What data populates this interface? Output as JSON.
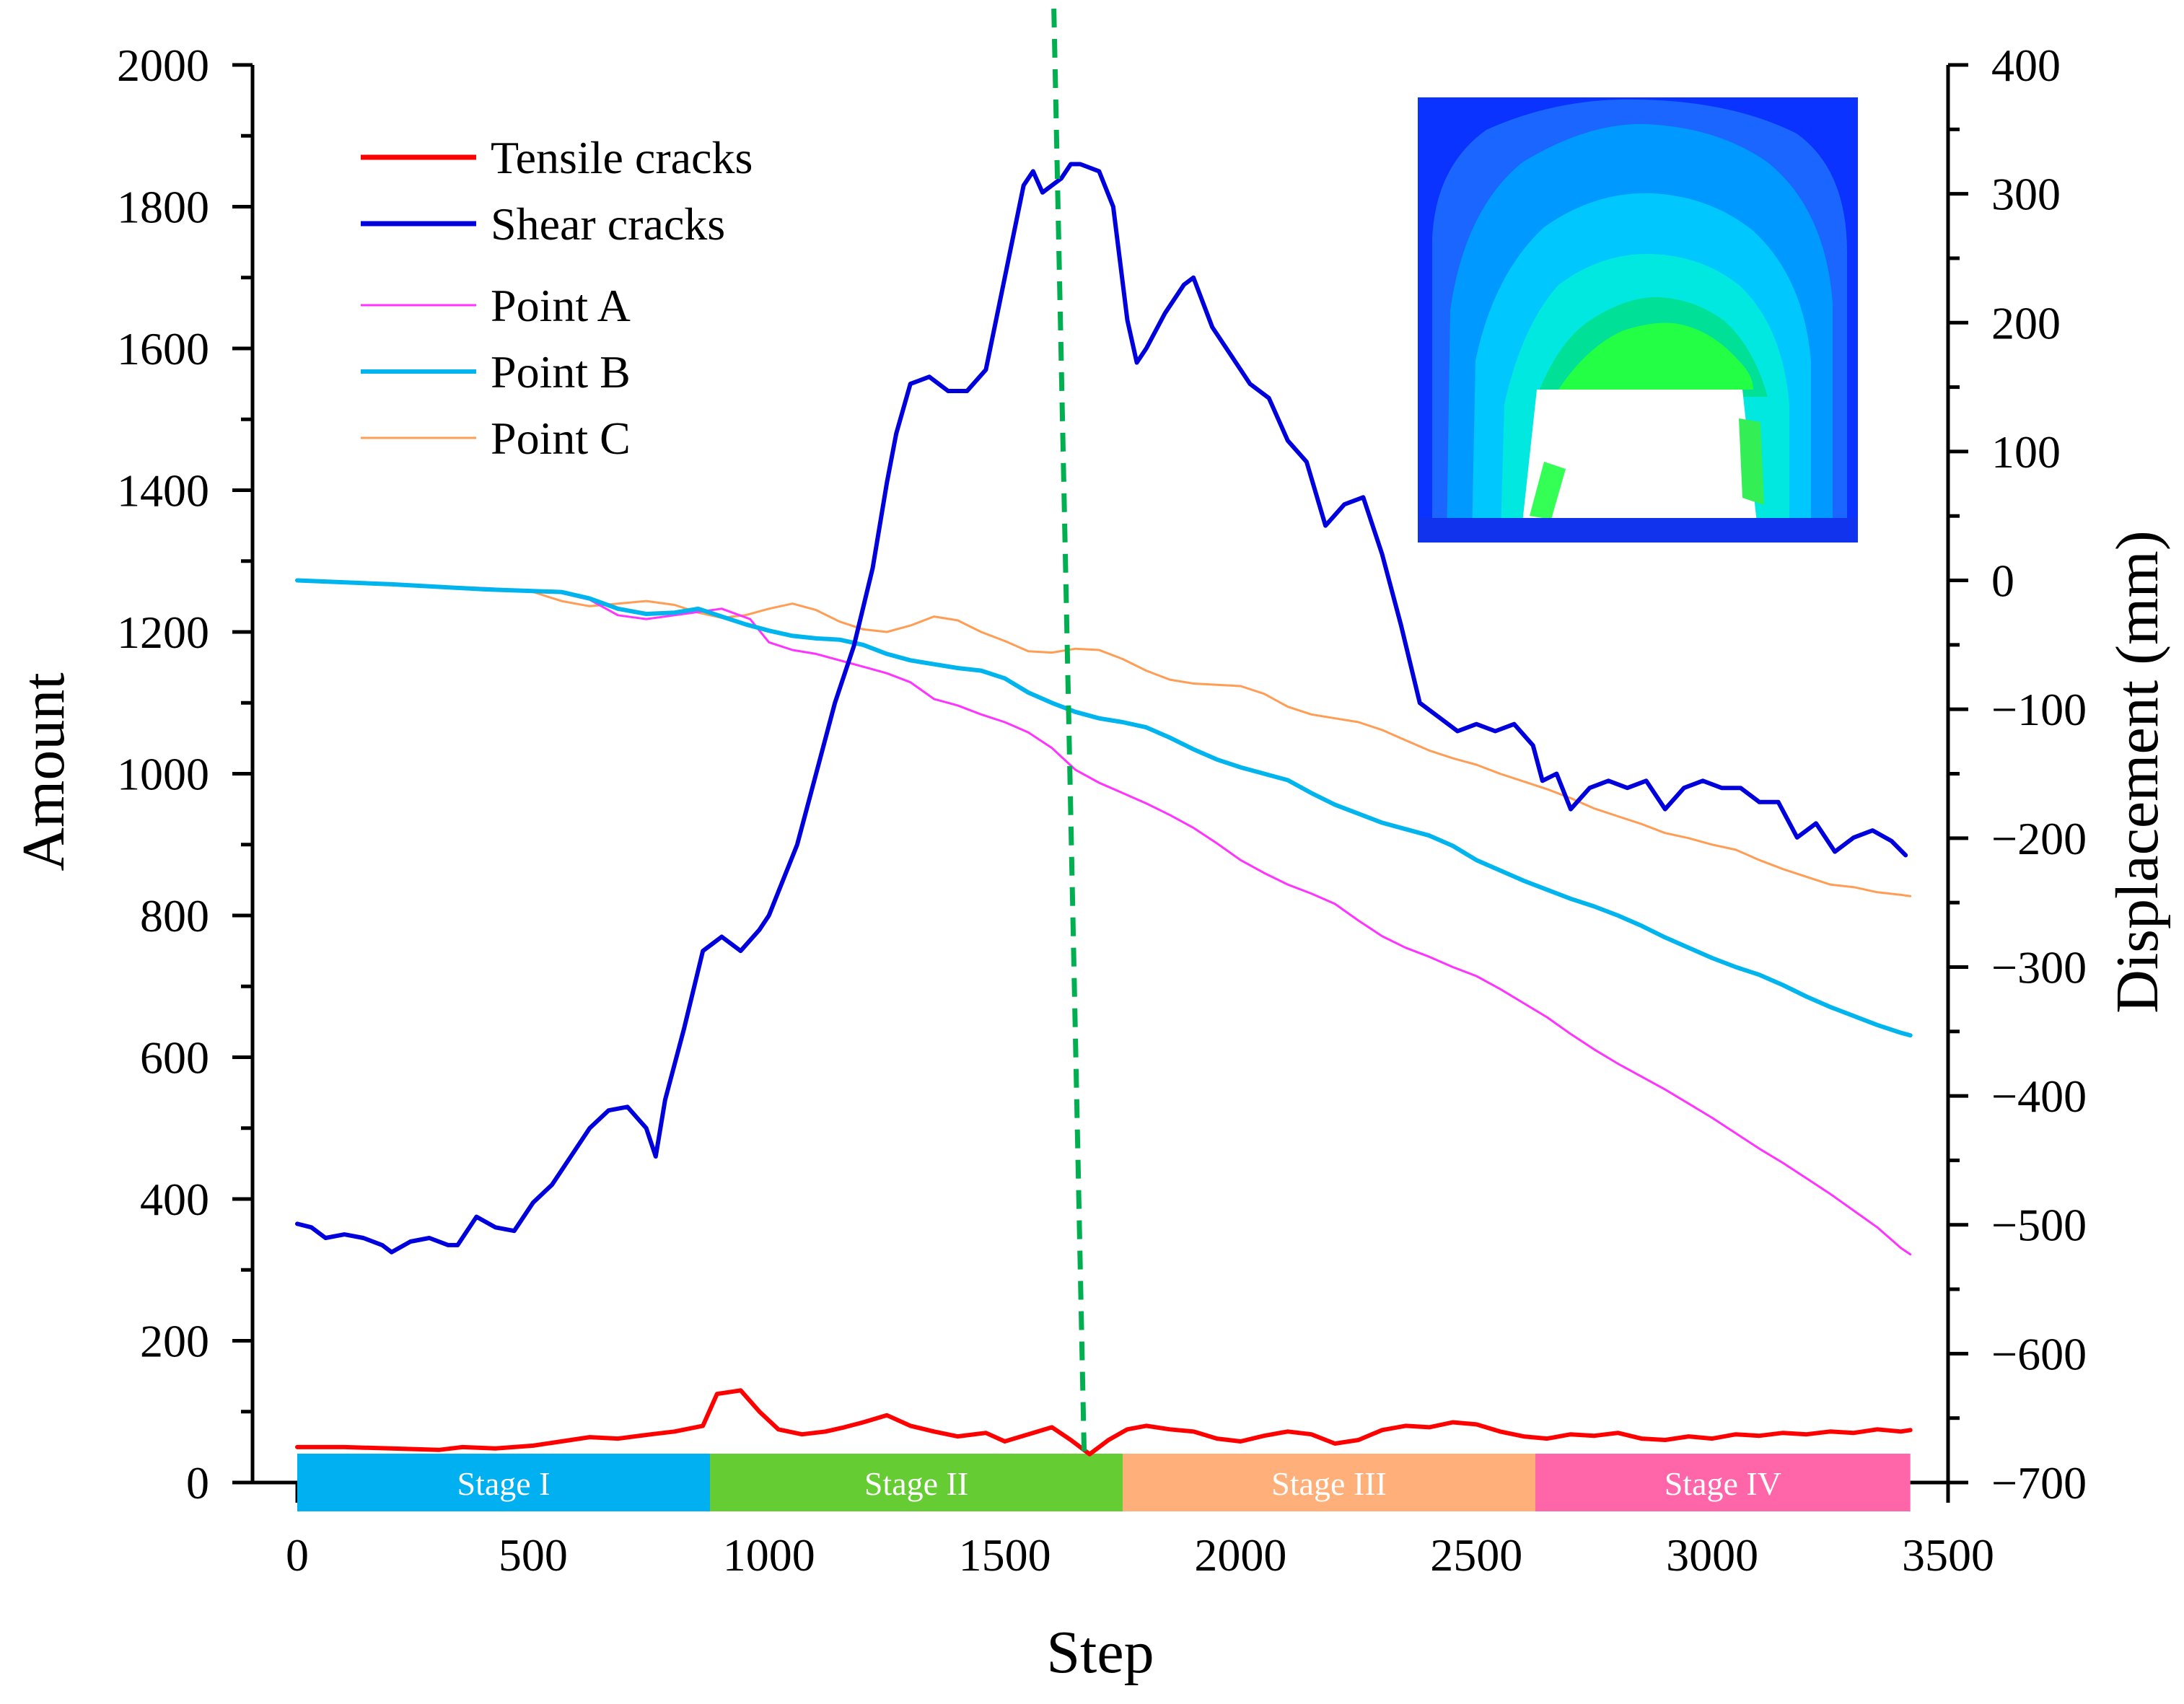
{
  "chart_data": {
    "type": "line",
    "xlabel": "Step",
    "ylabel_left": "Amount",
    "ylabel_right": "Displacement (mm)",
    "xlim": [
      0,
      3500
    ],
    "ylim_left": [
      0,
      2000
    ],
    "ylim_right": [
      -700,
      400
    ],
    "x_ticks": [
      {
        "value": 0,
        "label": "0"
      },
      {
        "value": 500,
        "label": "500"
      },
      {
        "value": 1000,
        "label": "1000"
      },
      {
        "value": 1500,
        "label": "1500"
      },
      {
        "value": 2000,
        "label": "2000"
      },
      {
        "value": 2500,
        "label": "2500"
      },
      {
        "value": 3000,
        "label": "3000"
      },
      {
        "value": 3500,
        "label": "3500"
      }
    ],
    "y_left_ticks": [
      {
        "value": 0,
        "label": "0"
      },
      {
        "value": 200,
        "label": "200"
      },
      {
        "value": 400,
        "label": "400"
      },
      {
        "value": 600,
        "label": "600"
      },
      {
        "value": 800,
        "label": "800"
      },
      {
        "value": 1000,
        "label": "1000"
      },
      {
        "value": 1200,
        "label": "1200"
      },
      {
        "value": 1400,
        "label": "1400"
      },
      {
        "value": 1600,
        "label": "1600"
      },
      {
        "value": 1800,
        "label": "1800"
      },
      {
        "value": 2000,
        "label": "2000"
      }
    ],
    "y_right_ticks": [
      {
        "value": 400,
        "label": "400"
      },
      {
        "value": 300,
        "label": "300"
      },
      {
        "value": 200,
        "label": "200"
      },
      {
        "value": 100,
        "label": "100"
      },
      {
        "value": 0,
        "label": "0"
      },
      {
        "value": -100,
        "label": "−100"
      },
      {
        "value": -200,
        "label": "−200"
      },
      {
        "value": -300,
        "label": "−300"
      },
      {
        "value": -400,
        "label": "−400"
      },
      {
        "value": -500,
        "label": "−500"
      },
      {
        "value": -600,
        "label": "−600"
      },
      {
        "value": -700,
        "label": "−700"
      }
    ],
    "stages": [
      {
        "label": "Stage I",
        "start": 0,
        "end": 875,
        "color": "#00b0f0"
      },
      {
        "label": "Stage II",
        "start": 875,
        "end": 1750,
        "color": "#66cc33"
      },
      {
        "label": "Stage III",
        "start": 1750,
        "end": 2625,
        "color": "#ffb07a"
      },
      {
        "label": "Stage IV",
        "start": 2625,
        "end": 3420,
        "color": "#ff66aa"
      }
    ],
    "peak_marker": {
      "x": 1650,
      "color": "#00b050"
    },
    "legend_position": "top-left",
    "series": [
      {
        "name": "Tensile cracks",
        "axis": "left",
        "color": "#ff0000",
        "x": [
          0,
          100,
          200,
          300,
          350,
          420,
          500,
          560,
          620,
          680,
          750,
          800,
          860,
          890,
          940,
          980,
          1020,
          1070,
          1120,
          1160,
          1200,
          1250,
          1300,
          1350,
          1400,
          1460,
          1500,
          1560,
          1600,
          1640,
          1680,
          1720,
          1760,
          1800,
          1850,
          1900,
          1950,
          2000,
          2050,
          2100,
          2150,
          2200,
          2250,
          2300,
          2350,
          2400,
          2450,
          2500,
          2550,
          2600,
          2650,
          2700,
          2750,
          2800,
          2850,
          2900,
          2950,
          3000,
          3050,
          3100,
          3150,
          3200,
          3250,
          3300,
          3350,
          3400,
          3420
        ],
        "y": [
          50,
          50,
          48,
          46,
          50,
          48,
          52,
          58,
          64,
          62,
          68,
          72,
          80,
          125,
          130,
          100,
          75,
          68,
          72,
          78,
          85,
          95,
          80,
          72,
          65,
          70,
          58,
          70,
          78,
          60,
          40,
          60,
          75,
          80,
          75,
          72,
          62,
          58,
          66,
          72,
          68,
          55,
          60,
          74,
          80,
          78,
          85,
          82,
          72,
          65,
          62,
          68,
          66,
          70,
          62,
          60,
          65,
          62,
          68,
          66,
          70,
          68,
          72,
          70,
          75,
          72,
          74
        ]
      },
      {
        "name": "Shear cracks",
        "axis": "left",
        "color": "#0000dd",
        "x": [
          0,
          30,
          60,
          100,
          140,
          180,
          200,
          240,
          280,
          320,
          340,
          380,
          420,
          460,
          500,
          540,
          580,
          620,
          660,
          700,
          740,
          760,
          780,
          820,
          860,
          880,
          900,
          940,
          980,
          1000,
          1030,
          1060,
          1100,
          1140,
          1180,
          1220,
          1250,
          1270,
          1300,
          1340,
          1380,
          1420,
          1460,
          1500,
          1540,
          1560,
          1580,
          1620,
          1640,
          1660,
          1700,
          1730,
          1760,
          1780,
          1800,
          1840,
          1880,
          1900,
          1940,
          1980,
          2020,
          2060,
          2100,
          2140,
          2180,
          2220,
          2260,
          2300,
          2340,
          2380,
          2420,
          2460,
          2500,
          2540,
          2580,
          2620,
          2640,
          2670,
          2700,
          2740,
          2780,
          2820,
          2860,
          2900,
          2940,
          2980,
          3020,
          3060,
          3100,
          3140,
          3180,
          3220,
          3260,
          3300,
          3340,
          3380,
          3410
        ],
        "y": [
          365,
          360,
          345,
          350,
          345,
          335,
          325,
          340,
          345,
          335,
          335,
          375,
          360,
          355,
          395,
          420,
          460,
          500,
          525,
          530,
          500,
          460,
          540,
          640,
          750,
          760,
          770,
          750,
          780,
          800,
          850,
          900,
          1000,
          1100,
          1180,
          1290,
          1410,
          1480,
          1550,
          1560,
          1540,
          1540,
          1570,
          1700,
          1830,
          1850,
          1820,
          1840,
          1860,
          1860,
          1850,
          1800,
          1640,
          1580,
          1600,
          1650,
          1690,
          1700,
          1630,
          1590,
          1550,
          1530,
          1470,
          1440,
          1350,
          1380,
          1390,
          1310,
          1210,
          1100,
          1080,
          1060,
          1070,
          1060,
          1070,
          1040,
          990,
          1000,
          950,
          980,
          990,
          980,
          990,
          950,
          980,
          990,
          980,
          980,
          960,
          960,
          910,
          930,
          890,
          910,
          920,
          905,
          885
        ]
      },
      {
        "name": "Point A",
        "axis": "right",
        "color": "#ff33ff",
        "x": [
          0,
          200,
          400,
          550,
          620,
          680,
          740,
          800,
          860,
          900,
          960,
          1000,
          1050,
          1100,
          1150,
          1200,
          1250,
          1300,
          1350,
          1400,
          1450,
          1500,
          1550,
          1600,
          1650,
          1700,
          1750,
          1800,
          1850,
          1900,
          1950,
          2000,
          2050,
          2100,
          2150,
          2200,
          2250,
          2300,
          2350,
          2400,
          2450,
          2500,
          2550,
          2600,
          2650,
          2700,
          2750,
          2800,
          2850,
          2900,
          2950,
          3000,
          3050,
          3100,
          3150,
          3200,
          3250,
          3300,
          3350,
          3400,
          3420
        ],
        "y": [
          0,
          -3,
          -6,
          -9,
          -15,
          -27,
          -30,
          -27,
          -24,
          -22,
          -30,
          -48,
          -54,
          -57,
          -62,
          -67,
          -72,
          -79,
          -92,
          -97,
          -104,
          -110,
          -118,
          -130,
          -147,
          -157,
          -165,
          -173,
          -182,
          -192,
          -204,
          -217,
          -227,
          -236,
          -243,
          -251,
          -264,
          -276,
          -285,
          -292,
          -300,
          -307,
          -317,
          -328,
          -339,
          -352,
          -364,
          -375,
          -385,
          -395,
          -406,
          -417,
          -429,
          -441,
          -452,
          -464,
          -476,
          -489,
          -502,
          -518,
          -523
        ]
      },
      {
        "name": "Point B",
        "axis": "right",
        "color": "#00b4ee",
        "x": [
          0,
          200,
          400,
          560,
          620,
          680,
          740,
          800,
          850,
          900,
          950,
          1000,
          1050,
          1100,
          1150,
          1200,
          1250,
          1300,
          1350,
          1400,
          1450,
          1500,
          1550,
          1600,
          1650,
          1700,
          1750,
          1800,
          1850,
          1900,
          1950,
          2000,
          2050,
          2100,
          2150,
          2200,
          2250,
          2300,
          2350,
          2400,
          2450,
          2500,
          2550,
          2600,
          2650,
          2700,
          2750,
          2800,
          2850,
          2900,
          2950,
          3000,
          3050,
          3100,
          3150,
          3200,
          3250,
          3300,
          3350,
          3400,
          3420
        ],
        "y": [
          0,
          -3,
          -7,
          -9,
          -14,
          -22,
          -26,
          -25,
          -22,
          -28,
          -34,
          -39,
          -43,
          -45,
          -46,
          -50,
          -57,
          -62,
          -65,
          -68,
          -70,
          -76,
          -87,
          -95,
          -102,
          -107,
          -110,
          -114,
          -122,
          -131,
          -139,
          -145,
          -150,
          -155,
          -165,
          -174,
          -181,
          -188,
          -193,
          -198,
          -206,
          -217,
          -225,
          -233,
          -240,
          -247,
          -253,
          -260,
          -268,
          -277,
          -285,
          -293,
          -300,
          -306,
          -314,
          -323,
          -331,
          -338,
          -345,
          -351,
          -353
        ]
      },
      {
        "name": "Point C",
        "axis": "right",
        "color": "#ff9d55",
        "x": [
          0,
          200,
          400,
          500,
          560,
          620,
          680,
          740,
          800,
          850,
          900,
          950,
          1000,
          1050,
          1100,
          1150,
          1200,
          1250,
          1300,
          1350,
          1400,
          1450,
          1500,
          1550,
          1600,
          1650,
          1700,
          1750,
          1800,
          1850,
          1900,
          1950,
          2000,
          2050,
          2100,
          2150,
          2200,
          2250,
          2300,
          2350,
          2400,
          2450,
          2500,
          2550,
          2600,
          2650,
          2700,
          2750,
          2800,
          2850,
          2900,
          2950,
          3000,
          3050,
          3100,
          3150,
          3200,
          3250,
          3300,
          3350,
          3400,
          3420
        ],
        "y": [
          0,
          -3,
          -7,
          -9,
          -16,
          -20,
          -18,
          -16,
          -19,
          -25,
          -29,
          -27,
          -22,
          -18,
          -23,
          -32,
          -38,
          -40,
          -35,
          -28,
          -31,
          -40,
          -47,
          -55,
          -56,
          -53,
          -54,
          -61,
          -70,
          -77,
          -80,
          -81,
          -82,
          -88,
          -98,
          -104,
          -107,
          -110,
          -116,
          -124,
          -132,
          -138,
          -143,
          -150,
          -156,
          -162,
          -169,
          -177,
          -183,
          -189,
          -196,
          -200,
          -205,
          -209,
          -217,
          -224,
          -230,
          -236,
          -238,
          -242,
          -244,
          -245
        ]
      }
    ]
  }
}
